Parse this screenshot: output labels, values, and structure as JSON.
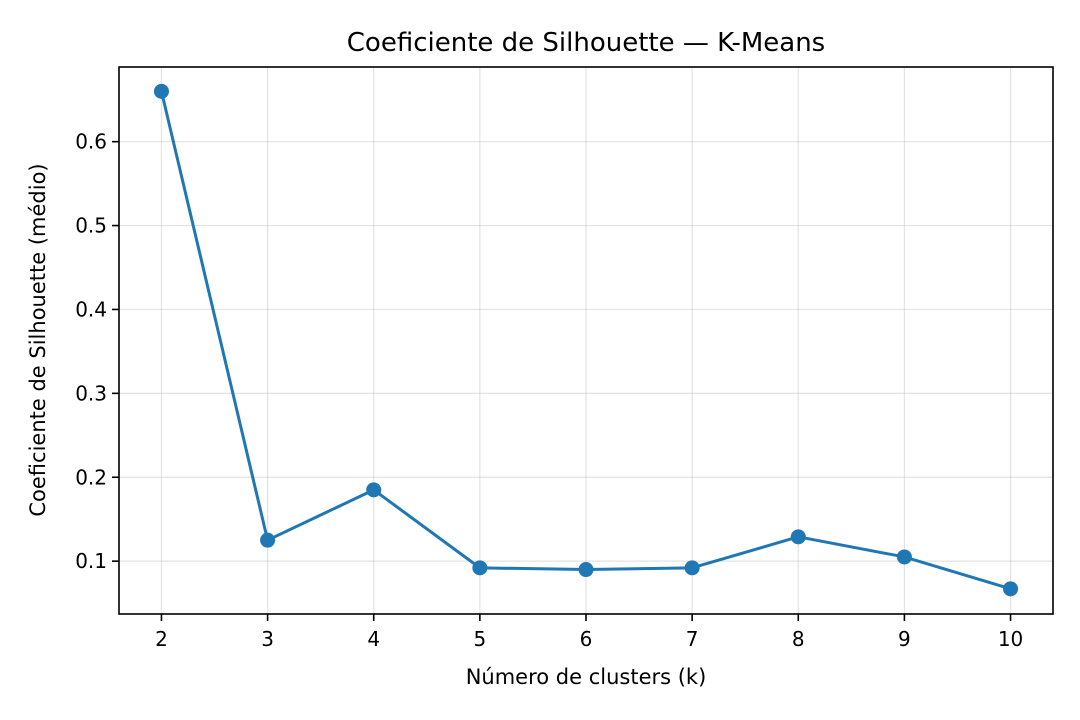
{
  "chart_data": {
    "type": "line",
    "title": "Coeficiente de Silhouette — K-Means",
    "xlabel": "Número de clusters (k)",
    "ylabel": "Coeficiente de Silhouette (médio)",
    "x": [
      2,
      3,
      4,
      5,
      6,
      7,
      8,
      9,
      10
    ],
    "series": [
      {
        "values": [
          0.66,
          0.125,
          0.185,
          0.092,
          0.09,
          0.092,
          0.129,
          0.105,
          0.067
        ]
      }
    ],
    "xticks": [
      2,
      3,
      4,
      5,
      6,
      7,
      8,
      9,
      10
    ],
    "xtick_labels": [
      "2",
      "3",
      "4",
      "5",
      "6",
      "7",
      "8",
      "9",
      "10"
    ],
    "yticks": [
      0.1,
      0.2,
      0.3,
      0.4,
      0.5,
      0.6
    ],
    "ytick_labels": [
      "0.1",
      "0.2",
      "0.3",
      "0.4",
      "0.5",
      "0.6"
    ],
    "xlim": [
      1.6,
      10.4
    ],
    "ylim": [
      0.037,
      0.689
    ],
    "grid": true,
    "color": "#1f77b4"
  }
}
